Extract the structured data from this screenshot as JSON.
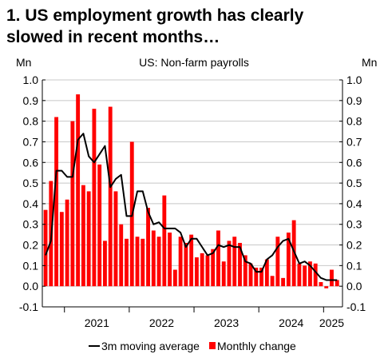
{
  "title": {
    "line1": "1. US employment growth has clearly",
    "line2": "slowed in recent months…"
  },
  "chart_data": {
    "type": "bar",
    "title": "US: Non-farm payrolls",
    "ylabel_left": "Mn",
    "ylabel_right": "Mn",
    "ylim": [
      -0.1,
      1.0
    ],
    "yticks": [
      "-0.1",
      "0.0",
      "0.1",
      "0.2",
      "0.3",
      "0.4",
      "0.5",
      "0.6",
      "0.7",
      "0.8",
      "0.9",
      "1.0"
    ],
    "year_labels": [
      "2021",
      "2022",
      "2023",
      "2024",
      "2025"
    ],
    "grid": true,
    "legend": {
      "placement": "bottom",
      "line_label": "3m moving average",
      "bar_label": "Monthly change"
    },
    "colors": {
      "bars": "#ff0000",
      "line": "#000000",
      "grid": "#c8c8c8"
    },
    "start_month": "2020-09",
    "series": [
      {
        "name": "Monthly change",
        "type": "bar",
        "values": [
          0.37,
          0.51,
          0.82,
          0.36,
          0.42,
          0.8,
          0.93,
          0.49,
          0.46,
          0.86,
          0.59,
          0.22,
          0.87,
          0.46,
          0.3,
          0.23,
          0.7,
          0.24,
          0.23,
          0.38,
          0.27,
          0.24,
          0.44,
          0.26,
          0.08,
          0.24,
          0.21,
          0.25,
          0.14,
          0.16,
          0.15,
          0.18,
          0.27,
          0.12,
          0.22,
          0.24,
          0.21,
          0.15,
          0.11,
          0.09,
          0.09,
          0.13,
          0.05,
          0.24,
          0.04,
          0.26,
          0.32,
          0.11,
          0.1,
          0.12,
          0.11,
          0.02,
          -0.01,
          0.08,
          0.03
        ]
      },
      {
        "name": "3m moving average",
        "type": "line",
        "values": [
          0.15,
          0.22,
          0.56,
          0.56,
          0.53,
          0.53,
          0.71,
          0.74,
          0.63,
          0.6,
          0.64,
          0.68,
          0.48,
          0.52,
          0.54,
          0.34,
          0.34,
          0.46,
          0.46,
          0.36,
          0.3,
          0.31,
          0.28,
          0.28,
          0.28,
          0.26,
          0.19,
          0.23,
          0.23,
          0.19,
          0.15,
          0.16,
          0.2,
          0.19,
          0.2,
          0.19,
          0.19,
          0.12,
          0.11,
          0.07,
          0.07,
          0.13,
          0.15,
          0.19,
          0.22,
          0.23,
          0.17,
          0.11,
          0.12,
          0.1,
          0.07,
          0.04,
          0.03,
          0.03,
          0.03
        ]
      }
    ]
  }
}
